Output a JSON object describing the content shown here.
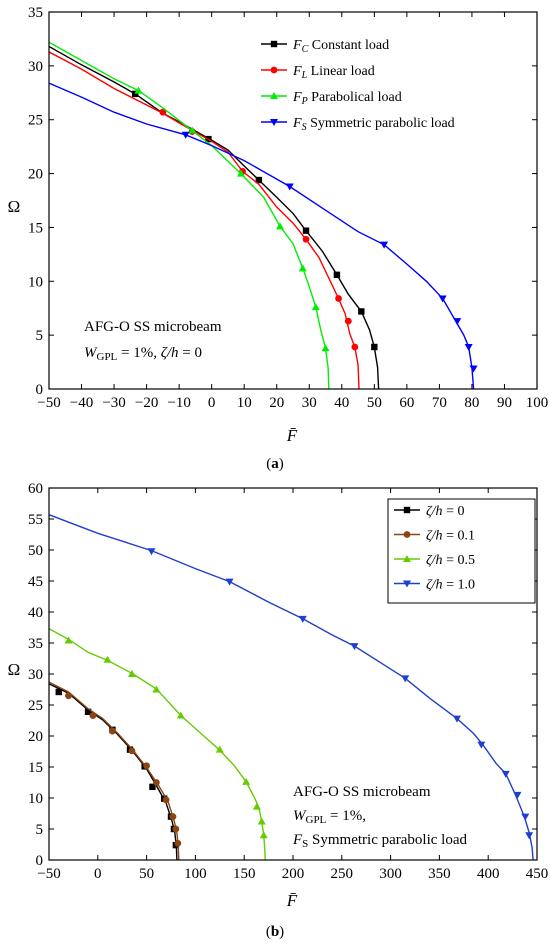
{
  "chart_data": [
    {
      "type": "line",
      "panel_label": "a",
      "xlabel": "F̄",
      "ylabel": "Ω",
      "xlim": [
        -50,
        100
      ],
      "ylim": [
        0,
        35
      ],
      "xticks": [
        -50,
        -40,
        -30,
        -20,
        -10,
        0,
        10,
        20,
        30,
        40,
        50,
        60,
        70,
        80,
        90,
        100
      ],
      "yticks": [
        0,
        5,
        10,
        15,
        20,
        25,
        30,
        35
      ],
      "grid": false,
      "legend_position": "top-right",
      "annotation": {
        "line1": "AFG-O SS microbeam",
        "w_symbol": "W",
        "w_sub": "GPL",
        "w_value": " = 1%, ",
        "zeta_symbol": "ζ/h",
        "zeta_value": " = 0"
      },
      "series": [
        {
          "sym": "F",
          "sub": "C",
          "label": " Constant load",
          "color": "#000000",
          "marker": "square",
          "points": [
            [
              -50,
              31.8
            ],
            [
              -40,
              30.1
            ],
            [
              -30,
              28.5
            ],
            [
              -23.5,
              27.4
            ],
            [
              -15,
              25.6
            ],
            [
              -10,
              24.8
            ],
            [
              0,
              23.1
            ],
            [
              5,
              22.2
            ],
            [
              10,
              20.7
            ],
            [
              14.5,
              19.4
            ],
            [
              20,
              17.8
            ],
            [
              25,
              16.3
            ],
            [
              29,
              14.7
            ],
            [
              34,
              12.8
            ],
            [
              38.5,
              10.6
            ],
            [
              42,
              8.8
            ],
            [
              46,
              7.2
            ],
            [
              48.5,
              5.5
            ],
            [
              50,
              3.9
            ],
            [
              51,
              2.0
            ],
            [
              51.3,
              0.0
            ]
          ],
          "markers": [
            [
              -23.5,
              27.4
            ],
            [
              -1,
              23.2
            ],
            [
              14.5,
              19.4
            ],
            [
              29,
              14.7
            ],
            [
              38.5,
              10.6
            ],
            [
              46,
              7.2
            ],
            [
              50,
              3.9
            ]
          ]
        },
        {
          "sym": "F",
          "sub": "L",
          "label": " Linear load",
          "color": "#ff0000",
          "marker": "circle",
          "points": [
            [
              -50,
              31.3
            ],
            [
              -40,
              29.7
            ],
            [
              -30,
              27.9
            ],
            [
              -15,
              25.6
            ],
            [
              -10,
              24.7
            ],
            [
              0,
              23.0
            ],
            [
              5,
              22.0
            ],
            [
              9.5,
              20.2
            ],
            [
              14.5,
              19.0
            ],
            [
              20,
              16.9
            ],
            [
              25,
              15.4
            ],
            [
              29,
              13.9
            ],
            [
              33,
              12.2
            ],
            [
              36,
              10.3
            ],
            [
              39,
              8.4
            ],
            [
              41,
              7.0
            ],
            [
              42.5,
              5.1
            ],
            [
              44,
              3.9
            ],
            [
              45,
              2.2
            ],
            [
              45.3,
              0.0
            ]
          ],
          "markers": [
            [
              -15,
              25.7
            ],
            [
              -6,
              23.9
            ],
            [
              9.5,
              20.2
            ],
            [
              29,
              13.9
            ],
            [
              39,
              8.4
            ],
            [
              42,
              6.3
            ],
            [
              44,
              3.9
            ]
          ]
        },
        {
          "sym": "F",
          "sub": "P",
          "label": " Parabolical load",
          "color": "#00ee00",
          "marker": "triangle-up",
          "points": [
            [
              -50,
              32.2
            ],
            [
              -40,
              30.5
            ],
            [
              -30,
              28.8
            ],
            [
              -22.5,
              27.7
            ],
            [
              -15,
              26.1
            ],
            [
              -6,
              24.0
            ],
            [
              0,
              22.6
            ],
            [
              9,
              20.0
            ],
            [
              16,
              17.8
            ],
            [
              21,
              15.1
            ],
            [
              25,
              13.5
            ],
            [
              28,
              11.2
            ],
            [
              30,
              9.5
            ],
            [
              32,
              7.6
            ],
            [
              33.5,
              5.5
            ],
            [
              35,
              3.8
            ],
            [
              35.8,
              2.0
            ],
            [
              36,
              0.0
            ]
          ],
          "markers": [
            [
              -22.5,
              27.7
            ],
            [
              -6,
              24.0
            ],
            [
              9,
              20.0
            ],
            [
              21,
              15.1
            ],
            [
              28,
              11.2
            ],
            [
              32,
              7.6
            ],
            [
              35,
              3.8
            ]
          ]
        },
        {
          "sym": "F",
          "sub": "S",
          "label": " Symmetric parabolic load",
          "color": "#0000ff",
          "marker": "triangle-down",
          "points": [
            [
              -50,
              28.4
            ],
            [
              -40,
              27.1
            ],
            [
              -30,
              25.7
            ],
            [
              -20,
              24.6
            ],
            [
              -8,
              23.6
            ],
            [
              0,
              22.6
            ],
            [
              10,
              21.2
            ],
            [
              24,
              18.8
            ],
            [
              35,
              16.6
            ],
            [
              45,
              14.6
            ],
            [
              53,
              13.4
            ],
            [
              60,
              11.6
            ],
            [
              66,
              10.0
            ],
            [
              71,
              8.4
            ],
            [
              75,
              6.3
            ],
            [
              77.5,
              5.0
            ],
            [
              79,
              3.9
            ],
            [
              80,
              2.0
            ],
            [
              80.5,
              0.0
            ]
          ],
          "markers": [
            [
              -8,
              23.6
            ],
            [
              24,
              18.8
            ],
            [
              53,
              13.4
            ],
            [
              71,
              8.4
            ],
            [
              75.5,
              6.3
            ],
            [
              79,
              3.9
            ],
            [
              80.5,
              1.9
            ]
          ]
        }
      ]
    },
    {
      "type": "line",
      "panel_label": "b",
      "xlabel": "F̄",
      "ylabel": "Ω",
      "xlim": [
        -50,
        450
      ],
      "ylim": [
        0,
        60
      ],
      "xticks": [
        -50,
        0,
        50,
        100,
        150,
        200,
        250,
        300,
        350,
        400,
        450
      ],
      "yticks": [
        0,
        5,
        10,
        15,
        20,
        25,
        30,
        35,
        40,
        45,
        50,
        55,
        60
      ],
      "grid": false,
      "legend_position": "top-right",
      "annotation": {
        "line1": "AFG-O SS microbeam",
        "w_symbol": "W",
        "w_sub": "GPL",
        "w_value": " = 1%,",
        "f_symbol": "F",
        "f_sub": "S",
        "f_value": " Symmetric parabolic load"
      },
      "series": [
        {
          "label_sym": "ζ/h",
          "label_value": " = 0",
          "color": "#000000",
          "marker": "square",
          "points": [
            [
              -50,
              28.4
            ],
            [
              -30,
              26.9
            ],
            [
              -10,
              24.2
            ],
            [
              5,
              22.6
            ],
            [
              20,
              20.3
            ],
            [
              35,
              17.7
            ],
            [
              50,
              14.7
            ],
            [
              60,
              12.0
            ],
            [
              70,
              9.2
            ],
            [
              76,
              6.3
            ],
            [
              79,
              4.3
            ],
            [
              80.5,
              2.0
            ],
            [
              81,
              0.0
            ]
          ],
          "markers": [
            [
              -40,
              27.1
            ],
            [
              -10,
              23.9
            ],
            [
              15,
              21.0
            ],
            [
              33,
              17.8
            ],
            [
              48,
              15.1
            ],
            [
              56,
              11.8
            ],
            [
              68,
              9.9
            ],
            [
              75,
              7.0
            ],
            [
              78,
              5.0
            ],
            [
              80,
              2.4
            ]
          ]
        },
        {
          "label_sym": "ζ/h",
          "label_value": " = 0.1",
          "color": "#8b4513",
          "marker": "circle",
          "points": [
            [
              -50,
              28.7
            ],
            [
              -30,
              27.1
            ],
            [
              -10,
              24.4
            ],
            [
              5,
              22.8
            ],
            [
              20,
              20.5
            ],
            [
              35,
              17.9
            ],
            [
              50,
              14.9
            ],
            [
              62,
              12.1
            ],
            [
              72,
              9.4
            ],
            [
              78,
              6.5
            ],
            [
              81,
              4.4
            ],
            [
              82.5,
              2.1
            ],
            [
              83,
              0.0
            ]
          ],
          "markers": [
            [
              -30,
              26.5
            ],
            [
              -5,
              23.3
            ],
            [
              15,
              20.8
            ],
            [
              35,
              17.6
            ],
            [
              50,
              15.2
            ],
            [
              60,
              12.5
            ],
            [
              70,
              9.7
            ],
            [
              77,
              7.0
            ],
            [
              80,
              5.0
            ],
            [
              82,
              2.7
            ]
          ]
        },
        {
          "label_sym": "ζ/h",
          "label_value": " = 0.5",
          "color": "#66cc00",
          "marker": "triangle-up",
          "points": [
            [
              -50,
              37.3
            ],
            [
              -30,
              35.6
            ],
            [
              -10,
              33.5
            ],
            [
              10,
              32.2
            ],
            [
              35,
              30.1
            ],
            [
              60,
              27.6
            ],
            [
              85,
              23.3
            ],
            [
              105,
              20.5
            ],
            [
              125,
              17.7
            ],
            [
              140,
              15.2
            ],
            [
              152,
              12.6
            ],
            [
              160,
              10.2
            ],
            [
              165,
              8.5
            ],
            [
              168,
              6.2
            ],
            [
              170,
              4.0
            ],
            [
              171,
              2.0
            ],
            [
              171.5,
              0.0
            ]
          ],
          "markers": [
            [
              -30,
              35.4
            ],
            [
              10,
              32.3
            ],
            [
              35,
              30.0
            ],
            [
              60,
              27.5
            ],
            [
              85,
              23.3
            ],
            [
              125,
              17.8
            ],
            [
              152,
              12.6
            ],
            [
              163,
              8.6
            ],
            [
              168,
              6.2
            ],
            [
              170,
              4.0
            ]
          ]
        },
        {
          "label_sym": "ζ/h",
          "label_value": " = 1.0",
          "color": "#1f3fcf",
          "marker": "triangle-down",
          "points": [
            [
              -50,
              55.7
            ],
            [
              0,
              52.7
            ],
            [
              55,
              49.9
            ],
            [
              100,
              47.0
            ],
            [
              135,
              44.9
            ],
            [
              175,
              41.6
            ],
            [
              210,
              38.9
            ],
            [
              240,
              36.3
            ],
            [
              263,
              34.5
            ],
            [
              290,
              31.8
            ],
            [
              315,
              29.3
            ],
            [
              340,
              26.1
            ],
            [
              368,
              22.8
            ],
            [
              385,
              20.4
            ],
            [
              395,
              18.5
            ],
            [
              408,
              15.6
            ],
            [
              418,
              13.9
            ],
            [
              428,
              10.5
            ],
            [
              437,
              7.0
            ],
            [
              442,
              4.4
            ],
            [
              445,
              2.0
            ],
            [
              446,
              0.0
            ]
          ],
          "markers": [
            [
              55,
              49.8
            ],
            [
              135,
              44.9
            ],
            [
              210,
              38.9
            ],
            [
              263,
              34.5
            ],
            [
              315,
              29.3
            ],
            [
              368,
              22.8
            ],
            [
              393,
              18.6
            ],
            [
              418,
              13.9
            ],
            [
              430,
              10.5
            ],
            [
              438,
              7.0
            ],
            [
              442,
              4.0
            ]
          ]
        }
      ]
    }
  ]
}
